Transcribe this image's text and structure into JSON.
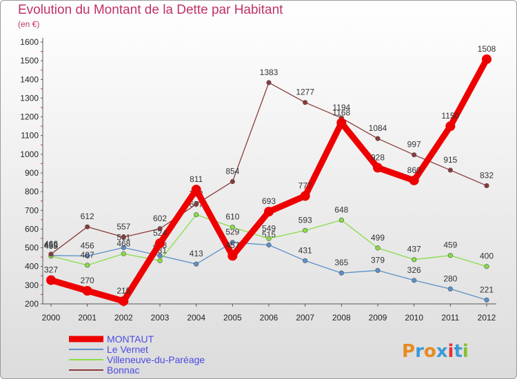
{
  "chart_data": {
    "type": "line",
    "title": "Evolution du Montant de la Dette par Habitant",
    "subtitle": "(en €)",
    "xlabel": "",
    "ylabel": "",
    "x": [
      "2000",
      "2001",
      "2002",
      "2003",
      "2004",
      "2005",
      "2006",
      "2007",
      "2008",
      "2009",
      "2010",
      "2011",
      "2012"
    ],
    "ylim": [
      200,
      1600
    ],
    "yticks": [
      200,
      300,
      400,
      500,
      600,
      700,
      800,
      900,
      1000,
      1100,
      1200,
      1300,
      1400,
      1500,
      1600
    ],
    "grid": false,
    "legend_position": "bottom-left",
    "series": [
      {
        "name": "MONTAUT",
        "color": "#ee0000",
        "values": [
          327,
          270,
          215,
          524,
          811,
          457,
          693,
          777,
          1168,
          928,
          860,
          1150,
          1508
        ]
      },
      {
        "name": "Le Vernet",
        "color": "#5b8fc8",
        "values": [
          459,
          456,
          501,
          458,
          413,
          529,
          515,
          431,
          365,
          379,
          326,
          280,
          221
        ]
      },
      {
        "name": "Villeneuve-du-Paréage",
        "color": "#88dd44",
        "values": [
          455,
          407,
          468,
          431,
          677,
          610,
          549,
          593,
          648,
          499,
          437,
          459,
          400
        ]
      },
      {
        "name": "Bonnac",
        "color": "#8b3a3a",
        "values": [
          466,
          612,
          557,
          602,
          733,
          854,
          1383,
          1277,
          1194,
          1084,
          997,
          915,
          832
        ]
      }
    ]
  },
  "logo": {
    "text": "Proxiti",
    "colors": [
      "#e88a20",
      "#3a9ad9",
      "#e88a20",
      "#3a9ad9",
      "#e83030",
      "#3a9ad9",
      "#88c030"
    ]
  }
}
